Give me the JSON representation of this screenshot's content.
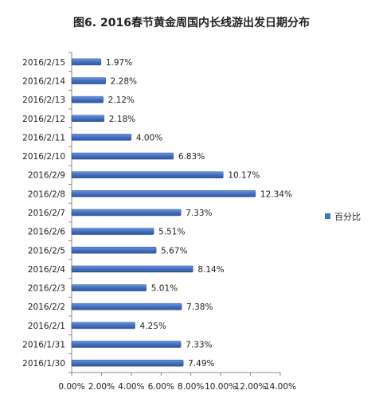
{
  "chart_data": {
    "type": "bar",
    "orientation": "horizontal",
    "title": "图6. 2016春节黄金周国内长线游出发日期分布",
    "categories": [
      "2016/2/15",
      "2016/2/14",
      "2016/2/13",
      "2016/2/12",
      "2016/2/11",
      "2016/2/10",
      "2016/2/9",
      "2016/2/8",
      "2016/2/7",
      "2016/2/6",
      "2016/2/5",
      "2016/2/4",
      "2016/2/3",
      "2016/2/2",
      "2016/2/1",
      "2016/1/31",
      "2016/1/30"
    ],
    "series": [
      {
        "name": "百分比",
        "values": [
          1.97,
          2.28,
          2.12,
          2.18,
          4.0,
          6.83,
          10.17,
          12.34,
          7.33,
          5.51,
          5.67,
          8.14,
          5.01,
          7.38,
          4.25,
          7.33,
          7.49
        ],
        "labels": [
          "1.97%",
          "2.28%",
          "2.12%",
          "2.18%",
          "4.00%",
          "6.83%",
          "10.17%",
          "12.34%",
          "7.33%",
          "5.51%",
          "5.67%",
          "8.14%",
          "5.01%",
          "7.38%",
          "4.25%",
          "7.33%",
          "7.49%"
        ]
      }
    ],
    "xlim": [
      0,
      14
    ],
    "x_ticks": [
      "0.00%",
      "2.00%",
      "4.00%",
      "6.00%",
      "8.00%",
      "10.00%",
      "12.00%",
      "14.00%"
    ],
    "grid": false,
    "legend_position": "right",
    "colors": {
      "bar": "#4472c4",
      "bar_dark": "#2f5597",
      "axis": "#888888"
    }
  }
}
